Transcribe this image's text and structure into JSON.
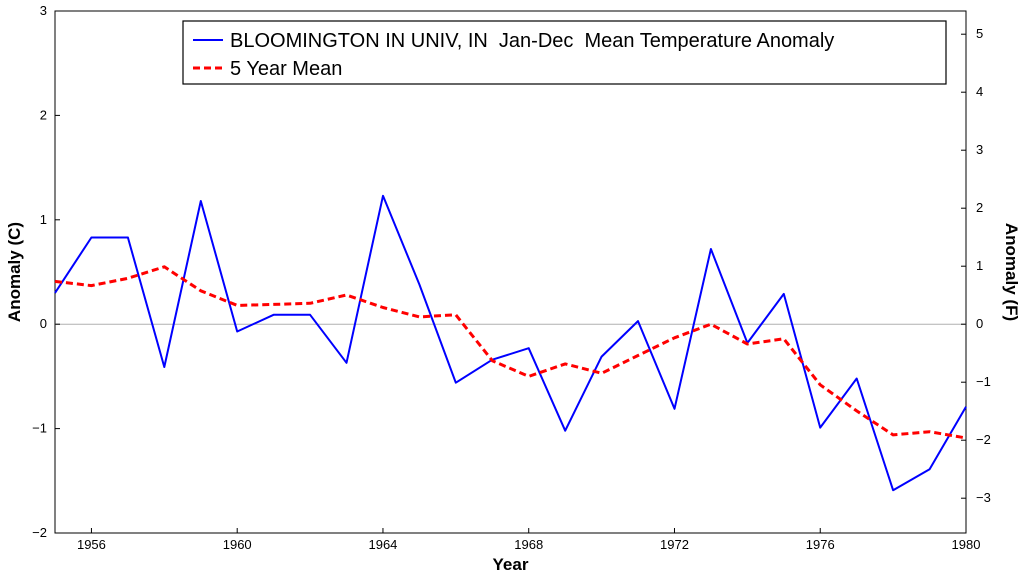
{
  "chart_data": {
    "type": "line",
    "xlabel": "Year",
    "ylabel_left": "Anomaly (C)",
    "ylabel_right": "Anomaly (F)",
    "xlim": [
      1955,
      1980
    ],
    "ylim": [
      -2,
      3
    ],
    "ylim_right": [
      -3.6,
      5.4
    ],
    "x_ticks": [
      1956,
      1960,
      1964,
      1968,
      1972,
      1976,
      1980
    ],
    "y_ticks_left": [
      -2,
      -1,
      0,
      1,
      2,
      3
    ],
    "y_ticks_right": [
      -3,
      -2,
      -1,
      0,
      1,
      2,
      3,
      4,
      5
    ],
    "grid": "horizontal line at 0",
    "legend_position": "top-right",
    "series": [
      {
        "name": "BLOOMINGTON IN UNIV, IN  Jan-Dec  Mean Temperature Anomaly",
        "color": "#0000ff",
        "style": "solid",
        "x": [
          1955,
          1956,
          1957,
          1958,
          1959,
          1960,
          1961,
          1962,
          1963,
          1964,
          1965,
          1966,
          1967,
          1968,
          1969,
          1970,
          1971,
          1972,
          1973,
          1974,
          1975,
          1976,
          1977,
          1978,
          1979,
          1980
        ],
        "values": [
          0.3,
          0.83,
          0.83,
          -0.41,
          1.18,
          -0.07,
          0.09,
          0.09,
          -0.37,
          1.23,
          0.38,
          -0.56,
          -0.34,
          -0.23,
          -1.02,
          -0.31,
          0.03,
          -0.81,
          0.72,
          -0.18,
          0.29,
          -0.99,
          -0.52,
          -1.59,
          -1.39,
          -0.79
        ]
      },
      {
        "name": "5 Year Mean",
        "color": "#ff0000",
        "style": "dashed",
        "x": [
          1955,
          1956,
          1957,
          1958,
          1959,
          1960,
          1961,
          1962,
          1963,
          1964,
          1965,
          1966,
          1967,
          1968,
          1969,
          1970,
          1971,
          1972,
          1973,
          1974,
          1975,
          1976,
          1977,
          1978,
          1979,
          1980
        ],
        "values": [
          0.41,
          0.37,
          0.44,
          0.55,
          0.32,
          0.18,
          0.19,
          0.2,
          0.28,
          0.16,
          0.07,
          0.09,
          -0.35,
          -0.5,
          -0.38,
          -0.47,
          -0.3,
          -0.13,
          0.0,
          -0.19,
          -0.14,
          -0.58,
          -0.83,
          -1.06,
          -1.03,
          -1.09
        ]
      }
    ]
  }
}
